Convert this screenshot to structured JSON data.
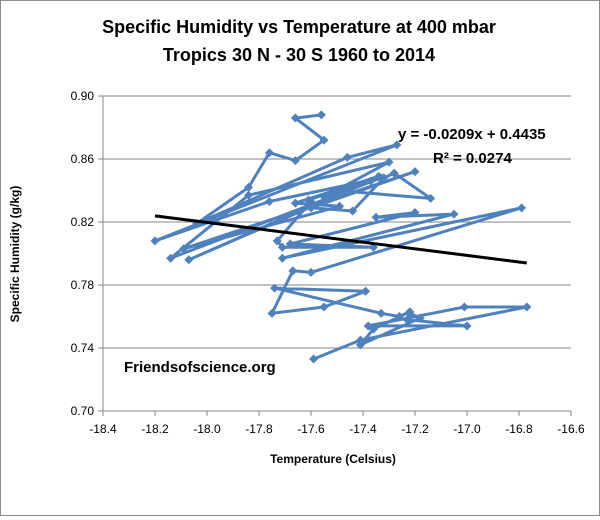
{
  "chart_data": {
    "type": "scatter",
    "title": [
      "Specific Humidity vs Temperature at 400 mbar",
      "Tropics 30 N - 30 S  1960 to 2014"
    ],
    "xlabel": "Temperature (Celsius)",
    "ylabel": "Specific Humidity (g/kg)",
    "xlim": [
      -18.4,
      -16.6
    ],
    "ylim": [
      0.7,
      0.9
    ],
    "x_ticks": [
      "-18.4",
      "-18.2",
      "-18.0",
      "-17.8",
      "-17.6",
      "-17.4",
      "-17.2",
      "-17.0",
      "-16.8",
      "-16.6"
    ],
    "y_ticks": [
      "0.70",
      "0.74",
      "0.78",
      "0.82",
      "0.86",
      "0.90"
    ],
    "grid": "horizontal",
    "series_color": "#4f81bd",
    "trendline_color": "#000000",
    "series": [
      {
        "x": [
          -17.56,
          -17.66,
          -17.55,
          -17.66,
          -17.76,
          -17.84,
          -18.04,
          -17.46,
          -17.27,
          -18.2,
          -17.76,
          -17.33,
          -18.14,
          -17.84,
          -17.3,
          -17.55,
          -17.37,
          -18.07,
          -17.34,
          -17.66,
          -17.49,
          -18.09,
          -17.2,
          -17.6,
          -17.44,
          -17.32,
          -17.28,
          -17.14,
          -17.5,
          -17.61,
          -17.6,
          -17.73,
          -17.71,
          -17.36,
          -17.68,
          -17.2,
          -17.35,
          -17.05,
          -17.71,
          -16.79,
          -17.6,
          -17.67,
          -17.75,
          -17.55,
          -17.39,
          -17.74,
          -17.33,
          -17.26,
          -17.22,
          -17.36,
          -17.41,
          -17.18,
          -17.22,
          -17.23,
          -17.0,
          -17.38,
          -17.01,
          -16.77,
          -17.41,
          -17.59
        ],
        "y": [
          0.888,
          0.886,
          0.872,
          0.859,
          0.864,
          0.842,
          0.819,
          0.861,
          0.869,
          0.808,
          0.833,
          0.848,
          0.797,
          0.837,
          0.858,
          0.836,
          0.846,
          0.796,
          0.849,
          0.832,
          0.83,
          0.803,
          0.852,
          0.829,
          0.827,
          0.848,
          0.851,
          0.835,
          0.84,
          0.834,
          0.833,
          0.808,
          0.804,
          0.804,
          0.806,
          0.826,
          0.823,
          0.825,
          0.797,
          0.829,
          0.788,
          0.789,
          0.762,
          0.766,
          0.776,
          0.778,
          0.762,
          0.76,
          0.763,
          0.752,
          0.742,
          0.759,
          0.762,
          0.758,
          0.754,
          0.754,
          0.766,
          0.766,
          0.745,
          0.733
        ]
      }
    ],
    "trendline": {
      "equation": "y = -0.0209x + 0.4435",
      "r_squared": "R² = 0.0274",
      "slope": -0.0209,
      "intercept": 0.4435,
      "x_range": [
        -18.2,
        -16.77
      ]
    },
    "watermark": "Friendsofscience.org"
  }
}
